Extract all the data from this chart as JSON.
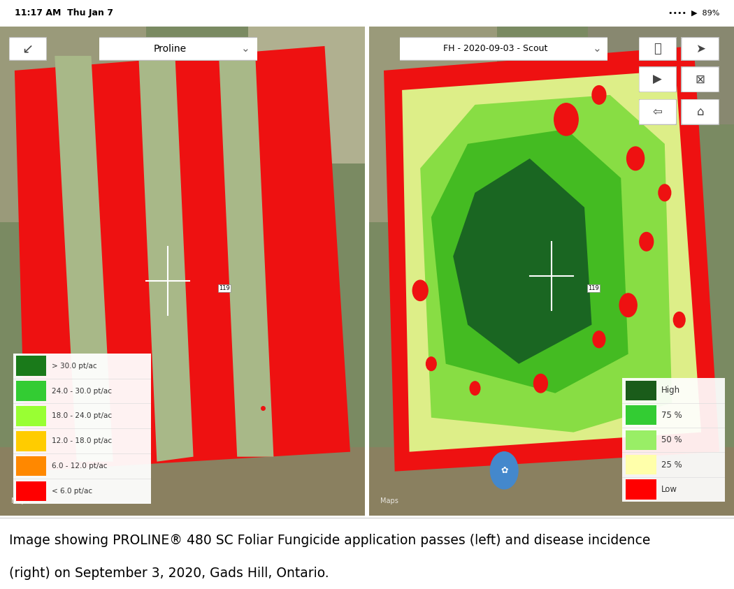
{
  "caption_line1": "Image showing PROLINE® 480 SC Foliar Fungicide application passes (left) and disease incidence",
  "caption_line2": "(right) on September 3, 2020, Gads Hill, Ontario.",
  "left_legend": {
    "labels": [
      "> 30.0 pt/ac",
      "24.0 - 30.0 pt/ac",
      "18.0 - 24.0 pt/ac",
      "12.0 - 18.0 pt/ac",
      "6.0 - 12.0 pt/ac",
      "< 6.0 pt/ac"
    ],
    "colors": [
      "#1a7a1a",
      "#33cc33",
      "#99ff33",
      "#ffcc00",
      "#ff8800",
      "#ff0000"
    ]
  },
  "right_legend": {
    "labels": [
      "High",
      "75 %",
      "50 %",
      "25 %",
      "Low"
    ],
    "colors": [
      "#1a5c1a",
      "#33cc33",
      "#99ee66",
      "#ffffaa",
      "#ff0000"
    ]
  },
  "left_dropdown": "Proline",
  "right_dropdown": "FH - 2020-09-03 - Scout",
  "fig_width": 10.5,
  "fig_height": 8.43,
  "caption_fontsize": 13.5,
  "status_bar_text": "11:17 AM  Thu Jan 7"
}
